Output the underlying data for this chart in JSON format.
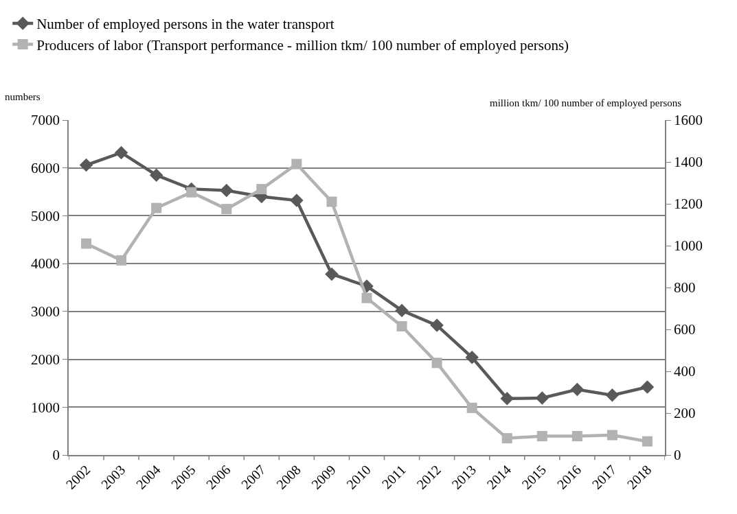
{
  "chart_data": {
    "type": "line",
    "categories": [
      "2002",
      "2003",
      "2004",
      "2005",
      "2006",
      "2007",
      "2008",
      "2009",
      "2010",
      "2011",
      "2012",
      "2013",
      "2014",
      "2015",
      "2016",
      "2017",
      "2018"
    ],
    "series": [
      {
        "name": "Number of employed persons in the water transport",
        "color": "#595959",
        "marker": "diamond",
        "values": [
          6060,
          6320,
          5850,
          5560,
          5530,
          5400,
          5320,
          3780,
          3530,
          3020,
          2710,
          2040,
          1180,
          1190,
          1370,
          1250,
          1420
        ]
      },
      {
        "name": "Producers of labor (Transport performance - million tkm/ 100 number of employed persons)",
        "color": "#b2b2b2",
        "marker": "square",
        "axis": "y2",
        "values": [
          1010,
          930,
          1180,
          1255,
          1175,
          1270,
          1390,
          1210,
          750,
          615,
          440,
          225,
          80,
          90,
          90,
          95,
          65
        ]
      }
    ],
    "ylabel": "numbers",
    "y2label": "million tkm/ 100 number of employed persons",
    "ylim": [
      0,
      7000
    ],
    "yticks": [
      0,
      1000,
      2000,
      3000,
      4000,
      5000,
      6000,
      7000
    ],
    "y2lim": [
      0,
      1600
    ],
    "y2ticks": [
      0,
      200,
      400,
      600,
      800,
      1000,
      1200,
      1400,
      1600
    ],
    "grid": "y",
    "legend": "top left"
  }
}
